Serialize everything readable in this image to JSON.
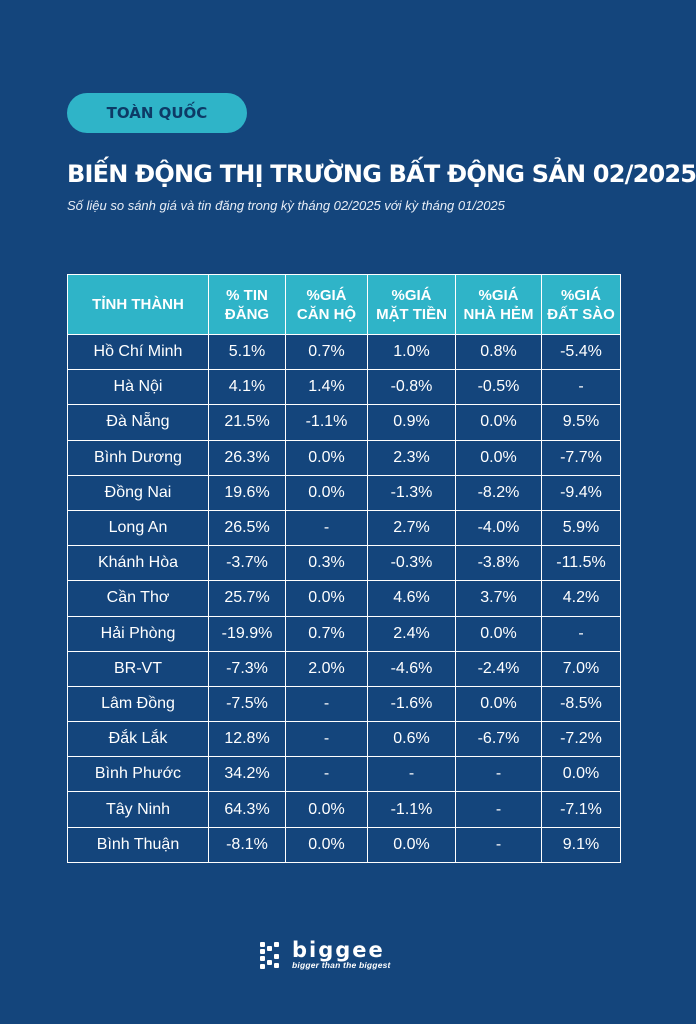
{
  "badge": "TOÀN QUỐC",
  "title": "BIẾN ĐỘNG THỊ TRƯỜNG BẤT ĐỘNG SẢN 02/2025",
  "subtitle": "Số liệu so sánh giá và tin đăng trong kỳ tháng 02/2025 với kỳ tháng 01/2025",
  "table": {
    "headers": [
      [
        "TỈNH THÀNH"
      ],
      [
        "% TIN",
        "ĐĂNG"
      ],
      [
        "%GIÁ",
        "CĂN HỘ"
      ],
      [
        "%GIÁ",
        "MẶT TIỀN"
      ],
      [
        "%GIÁ",
        "NHÀ HẺM"
      ],
      [
        "%GIÁ",
        "ĐẤT SÀO"
      ]
    ],
    "rows": [
      [
        "Hồ Chí Minh",
        "5.1%",
        "0.7%",
        "1.0%",
        "0.8%",
        "-5.4%"
      ],
      [
        "Hà Nội",
        "4.1%",
        "1.4%",
        "-0.8%",
        "-0.5%",
        "-"
      ],
      [
        "Đà Nẵng",
        "21.5%",
        "-1.1%",
        "0.9%",
        "0.0%",
        "9.5%"
      ],
      [
        "Bình Dương",
        "26.3%",
        "0.0%",
        "2.3%",
        "0.0%",
        "-7.7%"
      ],
      [
        "Đồng Nai",
        "19.6%",
        "0.0%",
        "-1.3%",
        "-8.2%",
        "-9.4%"
      ],
      [
        "Long An",
        "26.5%",
        "-",
        "2.7%",
        "-4.0%",
        "5.9%"
      ],
      [
        "Khánh Hòa",
        "-3.7%",
        "0.3%",
        "-0.3%",
        "-3.8%",
        "-11.5%"
      ],
      [
        "Cần Thơ",
        "25.7%",
        "0.0%",
        "4.6%",
        "3.7%",
        "4.2%"
      ],
      [
        "Hải Phòng",
        "-19.9%",
        "0.7%",
        "2.4%",
        "0.0%",
        "-"
      ],
      [
        "BR-VT",
        "-7.3%",
        "2.0%",
        "-4.6%",
        "-2.4%",
        "7.0%"
      ],
      [
        "Lâm Đồng",
        "-7.5%",
        "-",
        "-1.6%",
        "0.0%",
        "-8.5%"
      ],
      [
        "Đắk Lắk",
        "12.8%",
        "-",
        "0.6%",
        "-6.7%",
        "-7.2%"
      ],
      [
        "Bình Phước",
        "34.2%",
        "-",
        "-",
        "-",
        "0.0%"
      ],
      [
        "Tây Ninh",
        "64.3%",
        "0.0%",
        "-1.1%",
        "-",
        "-7.1%"
      ],
      [
        "Bình Thuận",
        "-8.1%",
        "0.0%",
        "0.0%",
        "-",
        "9.1%"
      ]
    ]
  },
  "logo": {
    "name": "biggee",
    "tagline": "bigger than the biggest",
    "icon": "biggee-logo-icon"
  },
  "colors": {
    "background": "#14457c",
    "accent": "#2fb4c8",
    "text": "#ffffff"
  }
}
